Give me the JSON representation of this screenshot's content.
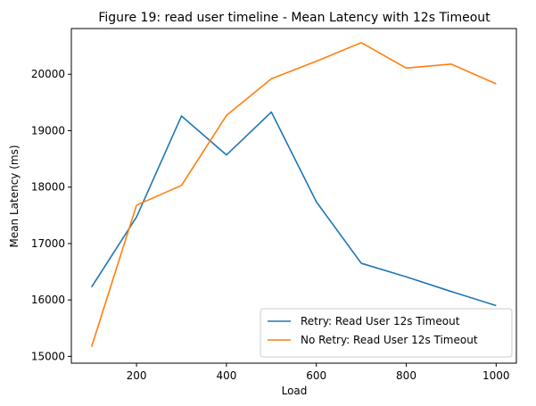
{
  "chart_data": {
    "type": "line",
    "title": "Figure 19: read user timeline - Mean Latency with 12s Timeout",
    "xlabel": "Load",
    "ylabel": "Mean Latency (ms)",
    "xlim": [
      55,
      1045
    ],
    "ylim": [
      14880,
      20810
    ],
    "xticks": [
      200,
      400,
      600,
      800,
      1000
    ],
    "yticks": [
      15000,
      16000,
      17000,
      18000,
      19000,
      20000
    ],
    "grid": false,
    "legend_position": "lower-right",
    "x": [
      100,
      200,
      300,
      400,
      500,
      600,
      700,
      800,
      900,
      1000
    ],
    "series": [
      {
        "name": "Retry: Read User 12s Timeout",
        "color": "#1f77b4",
        "values": [
          16230,
          17470,
          19260,
          18570,
          19330,
          17740,
          16650,
          16410,
          16150,
          15900
        ]
      },
      {
        "name": "No Retry: Read User 12s Timeout",
        "color": "#ff7f0e",
        "values": [
          15170,
          17680,
          18030,
          19270,
          19920,
          20230,
          20560,
          20110,
          20180,
          19830
        ]
      }
    ]
  }
}
